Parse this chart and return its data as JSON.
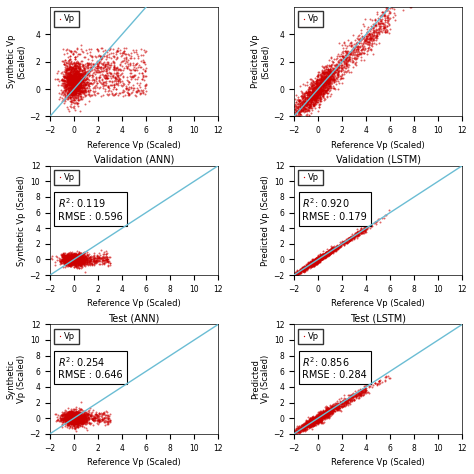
{
  "panels": [
    {
      "title": "",
      "ylabel": "Synthetic Vp\n(Scaled)",
      "xlabel": "Reference Vp (Scaled)",
      "r2": null,
      "rmse": null,
      "cluster": "train_ann",
      "xlim": [
        -2,
        12
      ],
      "ylim": [
        -2,
        6
      ]
    },
    {
      "title": "",
      "ylabel": "Predicted Vp\n(Scaled)",
      "xlabel": "Reference Vp (Scaled)",
      "r2": null,
      "rmse": null,
      "cluster": "train_lstm",
      "xlim": [
        -2,
        12
      ],
      "ylim": [
        -2,
        6
      ]
    },
    {
      "title": "Validation (ANN)",
      "ylabel": "Synthetic Vp (Scaled)",
      "xlabel": "Reference Vp (Scaled)",
      "r2": 0.119,
      "rmse": 0.596,
      "cluster": "val_ann",
      "xlim": [
        -2,
        12
      ],
      "ylim": [
        -2,
        12
      ]
    },
    {
      "title": "Validation (LSTM)",
      "ylabel": "Predicted Vp (Scaled)",
      "xlabel": "Reference Vp (Scaled)",
      "r2": 0.92,
      "rmse": 0.179,
      "cluster": "val_lstm",
      "xlim": [
        -2,
        12
      ],
      "ylim": [
        -2,
        12
      ]
    },
    {
      "title": "Test (ANN)",
      "ylabel": "Synthetic\nVp (Scaled)",
      "xlabel": "Reference Vp (Scaled)",
      "r2": 0.254,
      "rmse": 0.646,
      "cluster": "test_ann",
      "xlim": [
        -2,
        12
      ],
      "ylim": [
        -2,
        12
      ]
    },
    {
      "title": "Test (LSTM)",
      "ylabel": "Predicted\nVp (Scaled)",
      "xlabel": "Reference Vp (Scaled)",
      "r2": 0.856,
      "rmse": 0.284,
      "cluster": "test_lstm",
      "xlim": [
        -2,
        12
      ],
      "ylim": [
        -2,
        12
      ]
    }
  ],
  "scatter_color": "#cc0000",
  "line_color": "#6bbdd4",
  "point_size": 2,
  "legend_label": "Vp",
  "title_fontsize": 7,
  "label_fontsize": 6,
  "tick_fontsize": 5.5,
  "annotation_fontsize": 7
}
